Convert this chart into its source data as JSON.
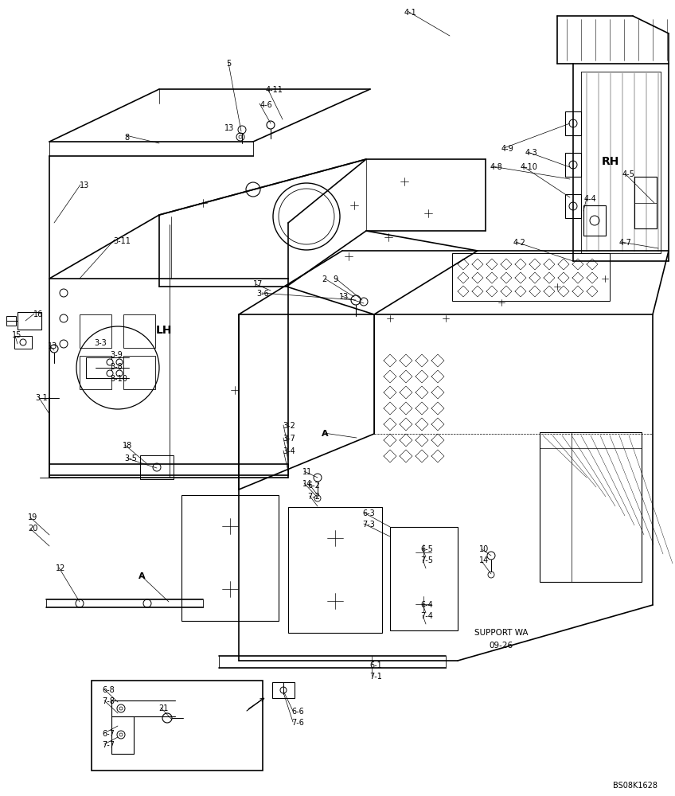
{
  "background_color": "#ffffff",
  "figsize": [
    8.48,
    10.0
  ],
  "dpi": 100,
  "image_code": "BS08K1628",
  "support_label": "SUPPORT WA",
  "support_ref": "09-26"
}
